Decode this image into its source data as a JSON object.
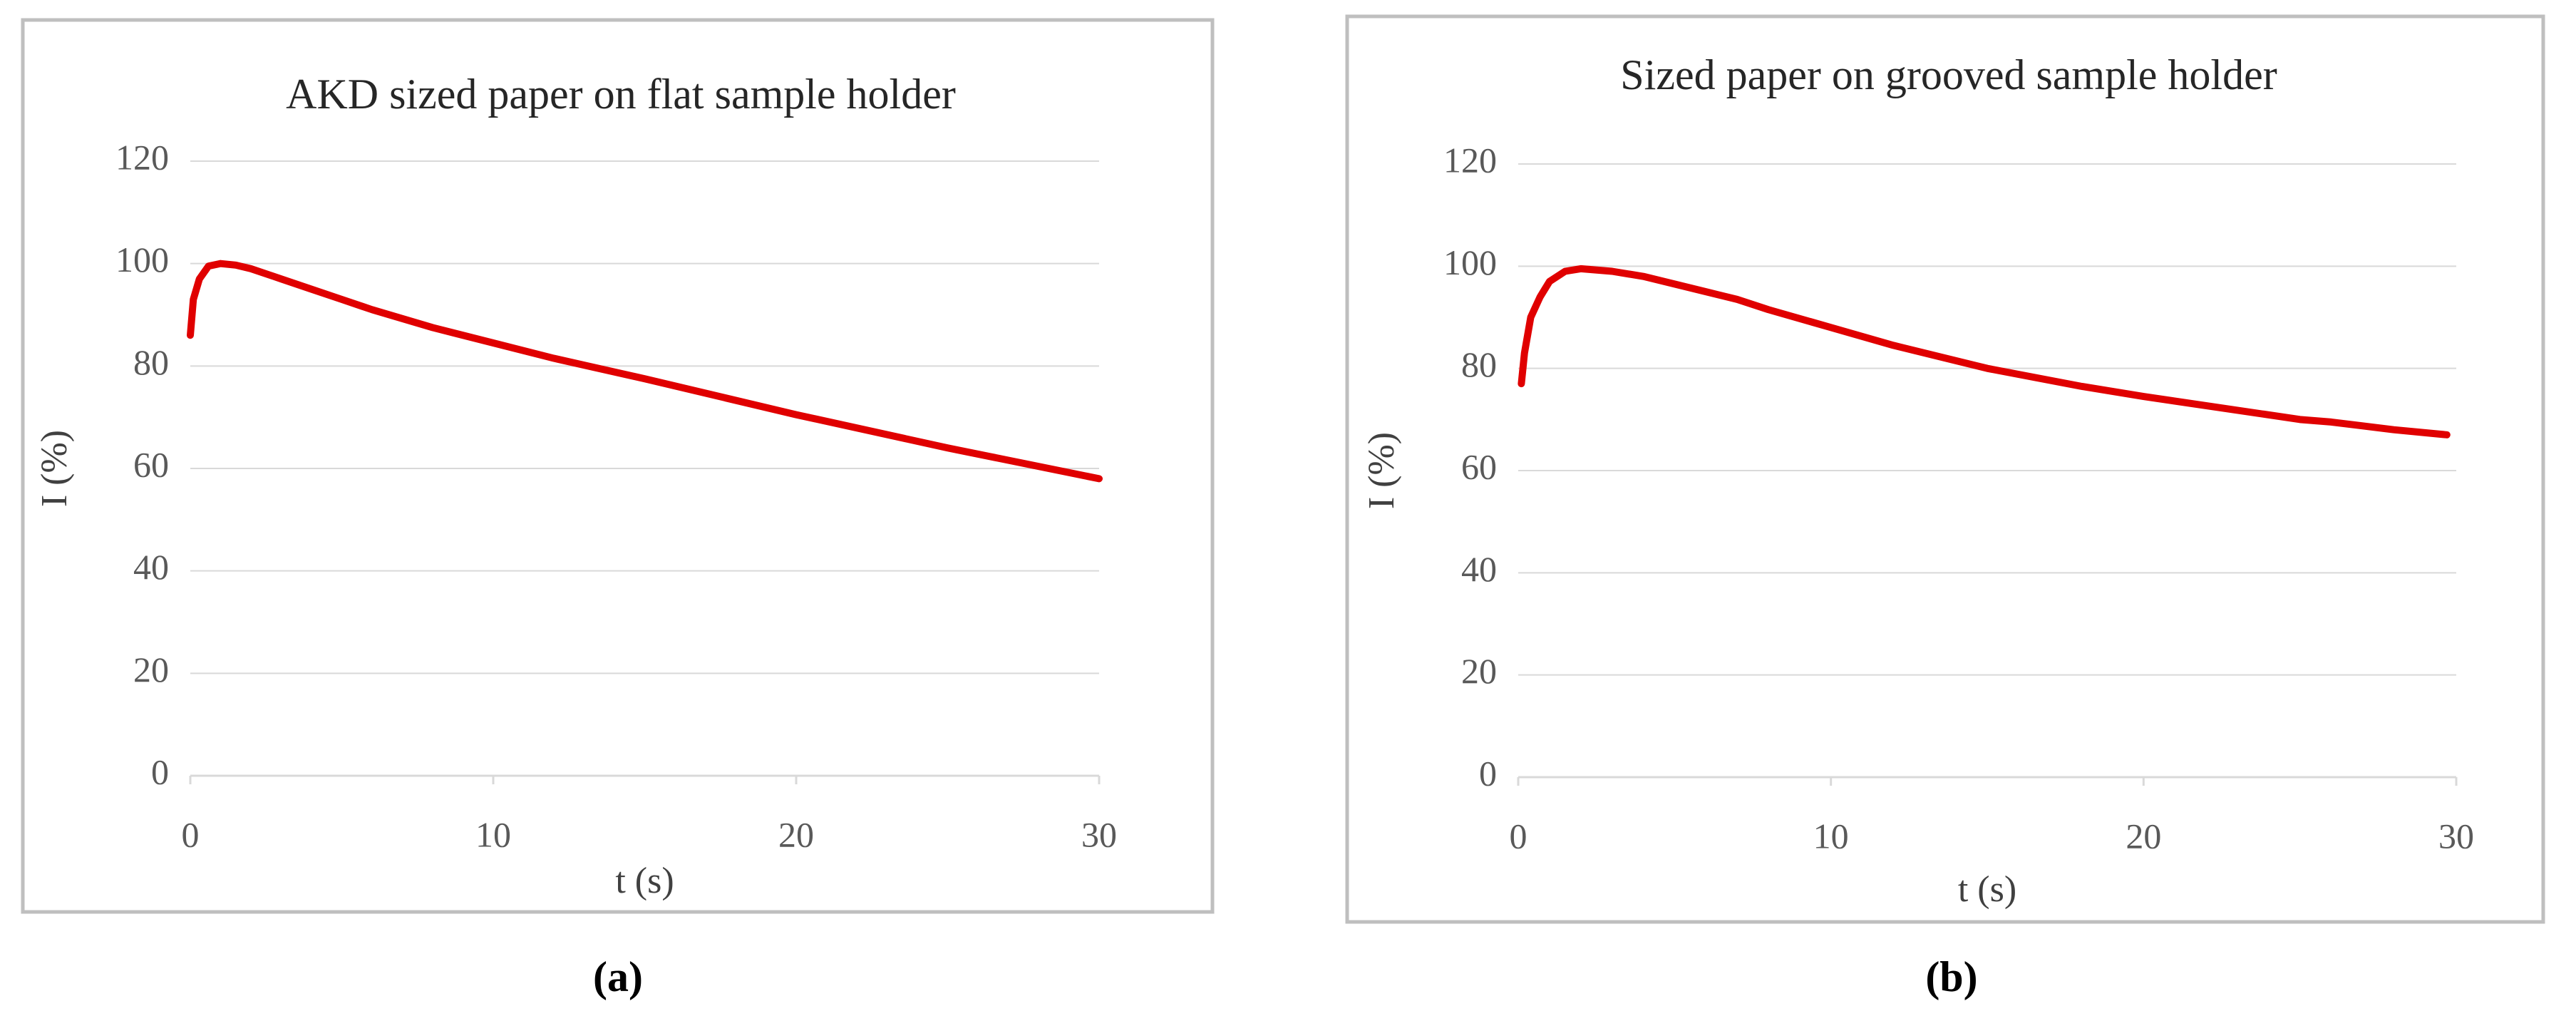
{
  "chart_data": [
    {
      "type": "line",
      "title": "AKD sized paper on flat sample holder",
      "x_label": "t (s)",
      "y_label": "I (%)",
      "caption": "(a)",
      "x": [
        0,
        0.1,
        0.3,
        0.6,
        1,
        1.5,
        2,
        3,
        4,
        5,
        6,
        8,
        10,
        12,
        15,
        20,
        25,
        30
      ],
      "series": [
        {
          "name": "I",
          "color": "#e00000",
          "values": [
            86,
            93,
            97,
            99.5,
            100,
            99.7,
            99,
            97,
            95,
            93,
            91,
            87.5,
            84.5,
            81.5,
            77.5,
            70.5,
            64,
            58
          ]
        }
      ],
      "xlim": [
        0,
        30
      ],
      "xticks": [
        0,
        10,
        20,
        30
      ],
      "ylim": [
        0,
        120
      ],
      "yticks": [
        0,
        20,
        40,
        60,
        80,
        100,
        120
      ],
      "grid": true
    },
    {
      "type": "line",
      "title": "Sized paper on grooved sample holder",
      "x_label": "t (s)",
      "y_label": "I (%)",
      "caption": "(b)",
      "x": [
        0.1,
        0.2,
        0.4,
        0.7,
        1,
        1.5,
        2,
        3,
        4,
        5,
        6,
        7,
        8,
        10,
        12,
        15,
        18,
        20,
        25,
        26,
        28,
        29.7
      ],
      "series": [
        {
          "name": "I",
          "color": "#e00000",
          "values": [
            77,
            83,
            90,
            94,
            97,
            99,
            99.5,
            99,
            98,
            96.5,
            95,
            93.5,
            91.5,
            88,
            84.5,
            80,
            76.5,
            74.5,
            70,
            69.5,
            68,
            67
          ]
        }
      ],
      "xlim": [
        0,
        30
      ],
      "xticks": [
        0,
        10,
        20,
        30
      ],
      "ylim": [
        0,
        120
      ],
      "yticks": [
        0,
        20,
        40,
        60,
        80,
        100,
        120
      ],
      "grid": true
    }
  ]
}
